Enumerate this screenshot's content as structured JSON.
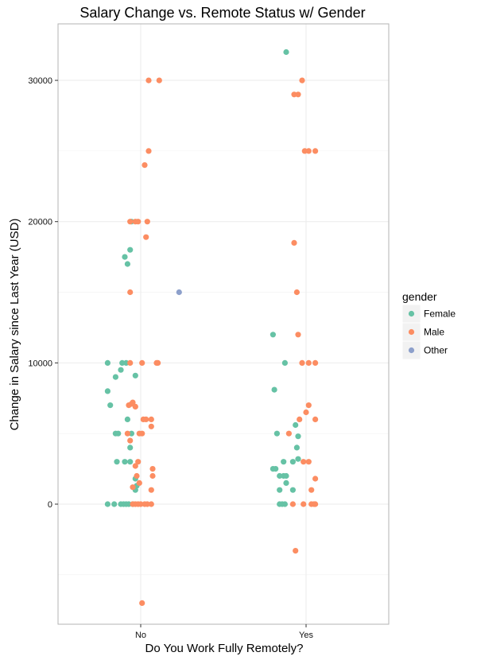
{
  "chart_data": {
    "type": "scatter",
    "title": "Salary Change vs. Remote Status w/ Gender",
    "xlabel": "Do You Work Fully Remotely?",
    "ylabel": "Change in Salary since Last Year (USD)",
    "categories": [
      "No",
      "Yes"
    ],
    "ylim": [
      -8500,
      34000
    ],
    "yticks": [
      0,
      10000,
      20000,
      30000
    ],
    "grid": true,
    "legend": {
      "title": "gender",
      "position": "right",
      "entries": [
        {
          "name": "Female",
          "color": "#66c2a5"
        },
        {
          "name": "Male",
          "color": "#fc8d62"
        },
        {
          "name": "Other",
          "color": "#8da0cb"
        }
      ]
    },
    "series": [
      {
        "name": "Female",
        "color": "#66c2a5",
        "points": [
          {
            "category": "No",
            "jitter": -0.25,
            "y": 0
          },
          {
            "category": "No",
            "jitter": -0.2,
            "y": 0
          },
          {
            "category": "No",
            "jitter": -0.15,
            "y": 0
          },
          {
            "category": "No",
            "jitter": -0.13,
            "y": 0
          },
          {
            "category": "No",
            "jitter": -0.11,
            "y": 0
          },
          {
            "category": "No",
            "jitter": -0.09,
            "y": 0
          },
          {
            "category": "No",
            "jitter": -0.06,
            "y": 0
          },
          {
            "category": "No",
            "jitter": -0.04,
            "y": 1000
          },
          {
            "category": "No",
            "jitter": -0.03,
            "y": 1300
          },
          {
            "category": "No",
            "jitter": -0.04,
            "y": 1800
          },
          {
            "category": "No",
            "jitter": -0.18,
            "y": 3000
          },
          {
            "category": "No",
            "jitter": -0.12,
            "y": 3000
          },
          {
            "category": "No",
            "jitter": -0.08,
            "y": 3000
          },
          {
            "category": "No",
            "jitter": -0.08,
            "y": 4000
          },
          {
            "category": "No",
            "jitter": -0.19,
            "y": 5000
          },
          {
            "category": "No",
            "jitter": -0.17,
            "y": 5000
          },
          {
            "category": "No",
            "jitter": -0.07,
            "y": 5000
          },
          {
            "category": "No",
            "jitter": -0.1,
            "y": 6000
          },
          {
            "category": "No",
            "jitter": -0.23,
            "y": 7000
          },
          {
            "category": "No",
            "jitter": -0.25,
            "y": 8000
          },
          {
            "category": "No",
            "jitter": -0.19,
            "y": 9000
          },
          {
            "category": "No",
            "jitter": -0.04,
            "y": 9100
          },
          {
            "category": "No",
            "jitter": -0.15,
            "y": 9500
          },
          {
            "category": "No",
            "jitter": -0.25,
            "y": 10000
          },
          {
            "category": "No",
            "jitter": -0.14,
            "y": 10000
          },
          {
            "category": "No",
            "jitter": -0.11,
            "y": 10000
          },
          {
            "category": "No",
            "jitter": -0.1,
            "y": 17000
          },
          {
            "category": "No",
            "jitter": -0.12,
            "y": 17500
          },
          {
            "category": "No",
            "jitter": -0.08,
            "y": 18000
          },
          {
            "category": "No",
            "jitter": -0.07,
            "y": 20000
          },
          {
            "category": "Yes",
            "jitter": -0.25,
            "y": 2500
          },
          {
            "category": "Yes",
            "jitter": -0.23,
            "y": 2500
          },
          {
            "category": "Yes",
            "jitter": -0.2,
            "y": 2000
          },
          {
            "category": "Yes",
            "jitter": -0.17,
            "y": 2000
          },
          {
            "category": "Yes",
            "jitter": -0.15,
            "y": 2000
          },
          {
            "category": "Yes",
            "jitter": -0.15,
            "y": 1500
          },
          {
            "category": "Yes",
            "jitter": -0.1,
            "y": 1000
          },
          {
            "category": "Yes",
            "jitter": -0.2,
            "y": 0
          },
          {
            "category": "Yes",
            "jitter": -0.18,
            "y": 0
          },
          {
            "category": "Yes",
            "jitter": -0.16,
            "y": 0
          },
          {
            "category": "Yes",
            "jitter": -0.2,
            "y": 1000
          },
          {
            "category": "Yes",
            "jitter": -0.17,
            "y": 3000
          },
          {
            "category": "Yes",
            "jitter": -0.1,
            "y": 3000
          },
          {
            "category": "Yes",
            "jitter": -0.06,
            "y": 3200
          },
          {
            "category": "Yes",
            "jitter": -0.07,
            "y": 4000
          },
          {
            "category": "Yes",
            "jitter": -0.22,
            "y": 5000
          },
          {
            "category": "Yes",
            "jitter": -0.06,
            "y": 4800
          },
          {
            "category": "Yes",
            "jitter": -0.08,
            "y": 5600
          },
          {
            "category": "Yes",
            "jitter": -0.24,
            "y": 8100
          },
          {
            "category": "Yes",
            "jitter": -0.16,
            "y": 10000
          },
          {
            "category": "Yes",
            "jitter": -0.25,
            "y": 12000
          },
          {
            "category": "Yes",
            "jitter": -0.15,
            "y": 32000
          }
        ]
      },
      {
        "name": "Male",
        "color": "#fc8d62",
        "points": [
          {
            "category": "No",
            "jitter": -0.06,
            "y": 0
          },
          {
            "category": "No",
            "jitter": -0.04,
            "y": 0
          },
          {
            "category": "No",
            "jitter": -0.02,
            "y": 0
          },
          {
            "category": "No",
            "jitter": 0.0,
            "y": 0
          },
          {
            "category": "No",
            "jitter": 0.03,
            "y": 0
          },
          {
            "category": "No",
            "jitter": 0.05,
            "y": 0
          },
          {
            "category": "No",
            "jitter": 0.08,
            "y": 0
          },
          {
            "category": "No",
            "jitter": -0.06,
            "y": 1200
          },
          {
            "category": "No",
            "jitter": -0.01,
            "y": 1500
          },
          {
            "category": "No",
            "jitter": 0.08,
            "y": 1000
          },
          {
            "category": "No",
            "jitter": -0.03,
            "y": 2000
          },
          {
            "category": "No",
            "jitter": 0.09,
            "y": 2000
          },
          {
            "category": "No",
            "jitter": 0.09,
            "y": 2500
          },
          {
            "category": "No",
            "jitter": -0.04,
            "y": 2700
          },
          {
            "category": "No",
            "jitter": -0.02,
            "y": 3000
          },
          {
            "category": "No",
            "jitter": -0.08,
            "y": 4500
          },
          {
            "category": "No",
            "jitter": -0.1,
            "y": 5000
          },
          {
            "category": "No",
            "jitter": -0.01,
            "y": 5000
          },
          {
            "category": "No",
            "jitter": 0.01,
            "y": 5000
          },
          {
            "category": "No",
            "jitter": 0.08,
            "y": 5500
          },
          {
            "category": "No",
            "jitter": 0.02,
            "y": 6000
          },
          {
            "category": "No",
            "jitter": 0.04,
            "y": 6000
          },
          {
            "category": "No",
            "jitter": 0.08,
            "y": 6000
          },
          {
            "category": "No",
            "jitter": -0.09,
            "y": 7000
          },
          {
            "category": "No",
            "jitter": -0.07,
            "y": 7100
          },
          {
            "category": "No",
            "jitter": -0.06,
            "y": 7200
          },
          {
            "category": "No",
            "jitter": -0.04,
            "y": 6900
          },
          {
            "category": "No",
            "jitter": -0.08,
            "y": 10000
          },
          {
            "category": "No",
            "jitter": 0.01,
            "y": 10000
          },
          {
            "category": "No",
            "jitter": 0.12,
            "y": 10000
          },
          {
            "category": "No",
            "jitter": 0.13,
            "y": 10000
          },
          {
            "category": "No",
            "jitter": -0.08,
            "y": 15000
          },
          {
            "category": "No",
            "jitter": 0.04,
            "y": 18900
          },
          {
            "category": "No",
            "jitter": -0.08,
            "y": 20000
          },
          {
            "category": "No",
            "jitter": -0.04,
            "y": 20000
          },
          {
            "category": "No",
            "jitter": -0.02,
            "y": 20000
          },
          {
            "category": "No",
            "jitter": 0.05,
            "y": 20000
          },
          {
            "category": "No",
            "jitter": 0.03,
            "y": 24000
          },
          {
            "category": "No",
            "jitter": 0.06,
            "y": 25000
          },
          {
            "category": "No",
            "jitter": 0.06,
            "y": 30000
          },
          {
            "category": "No",
            "jitter": 0.14,
            "y": 30000
          },
          {
            "category": "No",
            "jitter": 0.01,
            "y": -7000
          },
          {
            "category": "Yes",
            "jitter": -0.1,
            "y": 0
          },
          {
            "category": "Yes",
            "jitter": -0.02,
            "y": 0
          },
          {
            "category": "Yes",
            "jitter": 0.04,
            "y": 0
          },
          {
            "category": "Yes",
            "jitter": 0.06,
            "y": 0
          },
          {
            "category": "Yes",
            "jitter": 0.07,
            "y": 0
          },
          {
            "category": "Yes",
            "jitter": 0.04,
            "y": 1000
          },
          {
            "category": "Yes",
            "jitter": 0.07,
            "y": 1800
          },
          {
            "category": "Yes",
            "jitter": -0.02,
            "y": 3000
          },
          {
            "category": "Yes",
            "jitter": 0.02,
            "y": 3000
          },
          {
            "category": "Yes",
            "jitter": -0.13,
            "y": 5000
          },
          {
            "category": "Yes",
            "jitter": -0.05,
            "y": 6000
          },
          {
            "category": "Yes",
            "jitter": 0.0,
            "y": 6500
          },
          {
            "category": "Yes",
            "jitter": 0.02,
            "y": 7000
          },
          {
            "category": "Yes",
            "jitter": 0.07,
            "y": 6000
          },
          {
            "category": "Yes",
            "jitter": -0.03,
            "y": 10000
          },
          {
            "category": "Yes",
            "jitter": 0.02,
            "y": 10000
          },
          {
            "category": "Yes",
            "jitter": 0.07,
            "y": 10000
          },
          {
            "category": "Yes",
            "jitter": -0.06,
            "y": 12000
          },
          {
            "category": "Yes",
            "jitter": -0.07,
            "y": 15000
          },
          {
            "category": "Yes",
            "jitter": -0.09,
            "y": 18500
          },
          {
            "category": "Yes",
            "jitter": -0.01,
            "y": 25000
          },
          {
            "category": "Yes",
            "jitter": 0.02,
            "y": 25000
          },
          {
            "category": "Yes",
            "jitter": 0.07,
            "y": 25000
          },
          {
            "category": "Yes",
            "jitter": -0.09,
            "y": 29000
          },
          {
            "category": "Yes",
            "jitter": -0.06,
            "y": 29000
          },
          {
            "category": "Yes",
            "jitter": -0.03,
            "y": 30000
          },
          {
            "category": "Yes",
            "jitter": -0.08,
            "y": -3300
          }
        ]
      },
      {
        "name": "Other",
        "color": "#8da0cb",
        "points": [
          {
            "category": "No",
            "jitter": 0.29,
            "y": 15000
          }
        ]
      }
    ]
  }
}
